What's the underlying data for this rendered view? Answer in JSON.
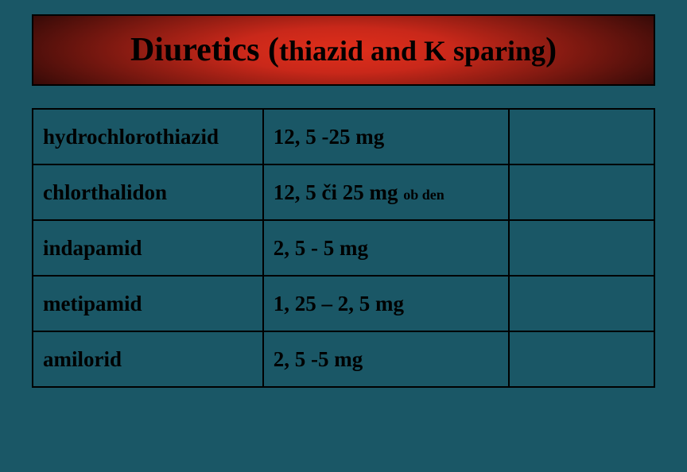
{
  "title": {
    "main": "Diuretics ",
    "paren_open": "(",
    "sub": "thiazid  and K sparing",
    "paren_close": ")"
  },
  "table": {
    "rows": [
      {
        "drug": "hydrochlorothiazid",
        "dose": "12, 5 -25 mg",
        "note": ""
      },
      {
        "drug": "chlorthalidon",
        "dose": "12, 5 či 25 mg ",
        "note": "ob den"
      },
      {
        "drug": "indapamid",
        "dose": "2, 5 - 5 mg",
        "note": ""
      },
      {
        "drug": "metipamid",
        "dose": "1, 25 – 2, 5 mg",
        "note": ""
      },
      {
        "drug": "amilorid",
        "dose": "2, 5 -5 mg",
        "note": ""
      }
    ]
  },
  "colors": {
    "background": "#1a5766",
    "title_gradient_center": "#e02e1a",
    "title_gradient_edge": "#2a0806",
    "border": "#000000",
    "text": "#000000"
  }
}
